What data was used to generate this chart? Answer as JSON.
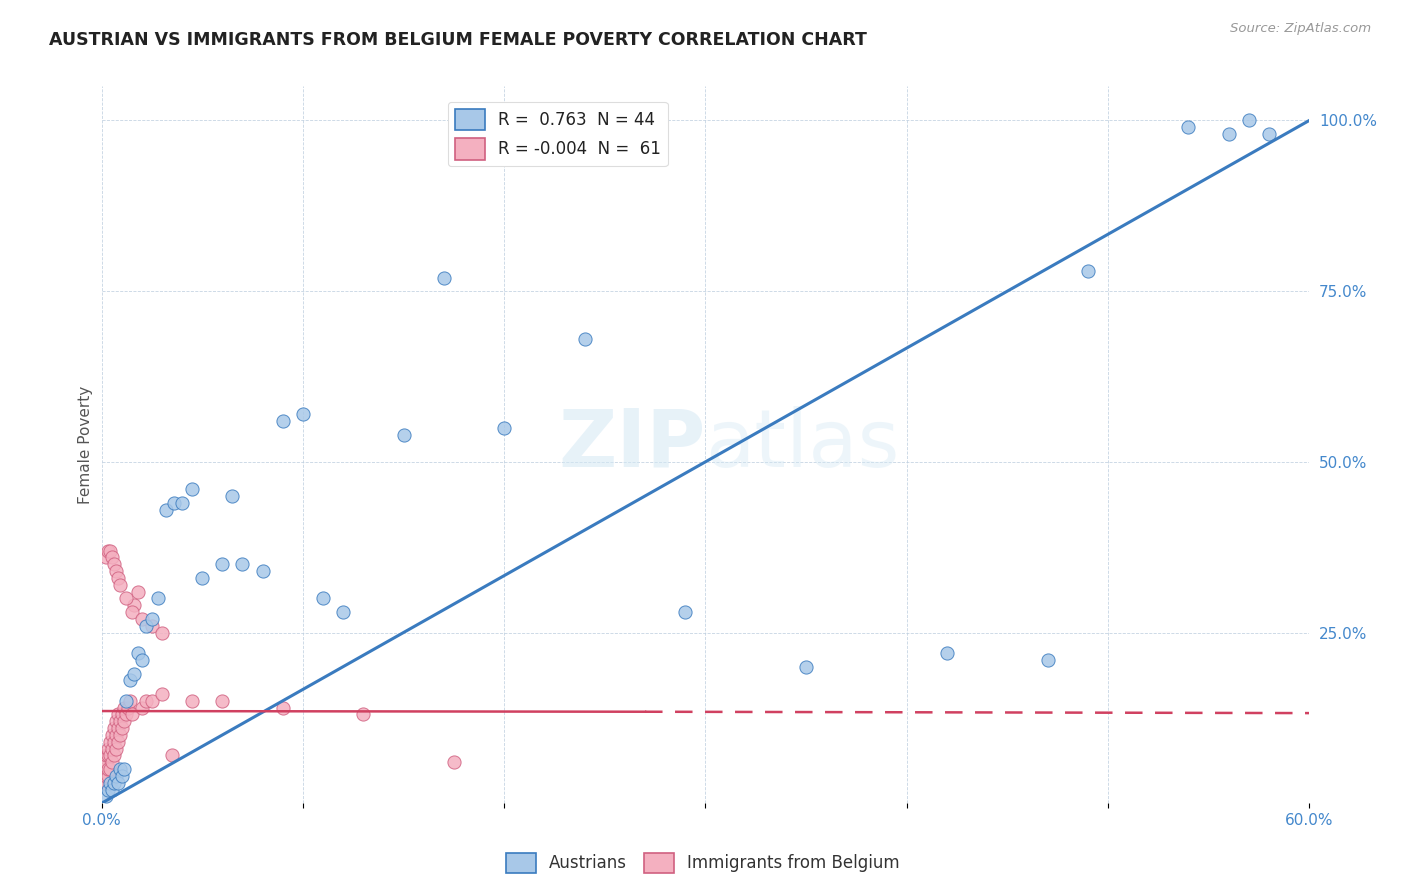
{
  "title": "AUSTRIAN VS IMMIGRANTS FROM BELGIUM FEMALE POVERTY CORRELATION CHART",
  "source": "Source: ZipAtlas.com",
  "ylabel": "Female Poverty",
  "color_austrians": "#a8c8e8",
  "color_belgium": "#f4b0c0",
  "color_line_austrians": "#3a7bbf",
  "color_line_belgium": "#d04060",
  "background": "#ffffff",
  "xlim": [
    0.0,
    0.6
  ],
  "ylim": [
    0.0,
    1.05
  ],
  "aust_line_x0": 0.0,
  "aust_line_y0": 0.0,
  "aust_line_x1": 0.6,
  "aust_line_y1": 1.0,
  "belg_line_x0": 0.0,
  "belg_line_y0": 0.135,
  "belg_line_x1": 0.6,
  "belg_line_y1": 0.132,
  "austrians_x": [
    0.002,
    0.003,
    0.004,
    0.005,
    0.006,
    0.007,
    0.008,
    0.009,
    0.01,
    0.011,
    0.012,
    0.014,
    0.016,
    0.018,
    0.02,
    0.022,
    0.025,
    0.028,
    0.032,
    0.036,
    0.04,
    0.045,
    0.05,
    0.06,
    0.065,
    0.07,
    0.08,
    0.09,
    0.1,
    0.11,
    0.12,
    0.15,
    0.17,
    0.2,
    0.24,
    0.29,
    0.35,
    0.42,
    0.47,
    0.49,
    0.54,
    0.56,
    0.57,
    0.58
  ],
  "austrians_y": [
    0.01,
    0.02,
    0.03,
    0.02,
    0.03,
    0.04,
    0.03,
    0.05,
    0.04,
    0.05,
    0.15,
    0.18,
    0.19,
    0.22,
    0.21,
    0.26,
    0.27,
    0.3,
    0.43,
    0.44,
    0.44,
    0.46,
    0.33,
    0.35,
    0.45,
    0.35,
    0.34,
    0.56,
    0.57,
    0.3,
    0.28,
    0.54,
    0.77,
    0.55,
    0.68,
    0.28,
    0.2,
    0.22,
    0.21,
    0.78,
    0.99,
    0.98,
    1.0,
    0.98
  ],
  "belgium_x": [
    0.001,
    0.001,
    0.001,
    0.002,
    0.002,
    0.002,
    0.002,
    0.003,
    0.003,
    0.003,
    0.003,
    0.004,
    0.004,
    0.004,
    0.005,
    0.005,
    0.005,
    0.006,
    0.006,
    0.006,
    0.007,
    0.007,
    0.007,
    0.008,
    0.008,
    0.008,
    0.009,
    0.009,
    0.01,
    0.01,
    0.011,
    0.011,
    0.012,
    0.013,
    0.014,
    0.015,
    0.016,
    0.018,
    0.02,
    0.022,
    0.025,
    0.03,
    0.035,
    0.045,
    0.06,
    0.09,
    0.13,
    0.175,
    0.002,
    0.003,
    0.004,
    0.005,
    0.006,
    0.007,
    0.008,
    0.009,
    0.012,
    0.015,
    0.02,
    0.025,
    0.03
  ],
  "belgium_y": [
    0.03,
    0.04,
    0.05,
    0.03,
    0.04,
    0.06,
    0.07,
    0.04,
    0.05,
    0.07,
    0.08,
    0.05,
    0.07,
    0.09,
    0.06,
    0.08,
    0.1,
    0.07,
    0.09,
    0.11,
    0.08,
    0.1,
    0.12,
    0.09,
    0.11,
    0.13,
    0.1,
    0.12,
    0.11,
    0.13,
    0.12,
    0.14,
    0.13,
    0.14,
    0.15,
    0.13,
    0.29,
    0.31,
    0.14,
    0.15,
    0.15,
    0.16,
    0.07,
    0.15,
    0.15,
    0.14,
    0.13,
    0.06,
    0.36,
    0.37,
    0.37,
    0.36,
    0.35,
    0.34,
    0.33,
    0.32,
    0.3,
    0.28,
    0.27,
    0.26,
    0.25
  ]
}
